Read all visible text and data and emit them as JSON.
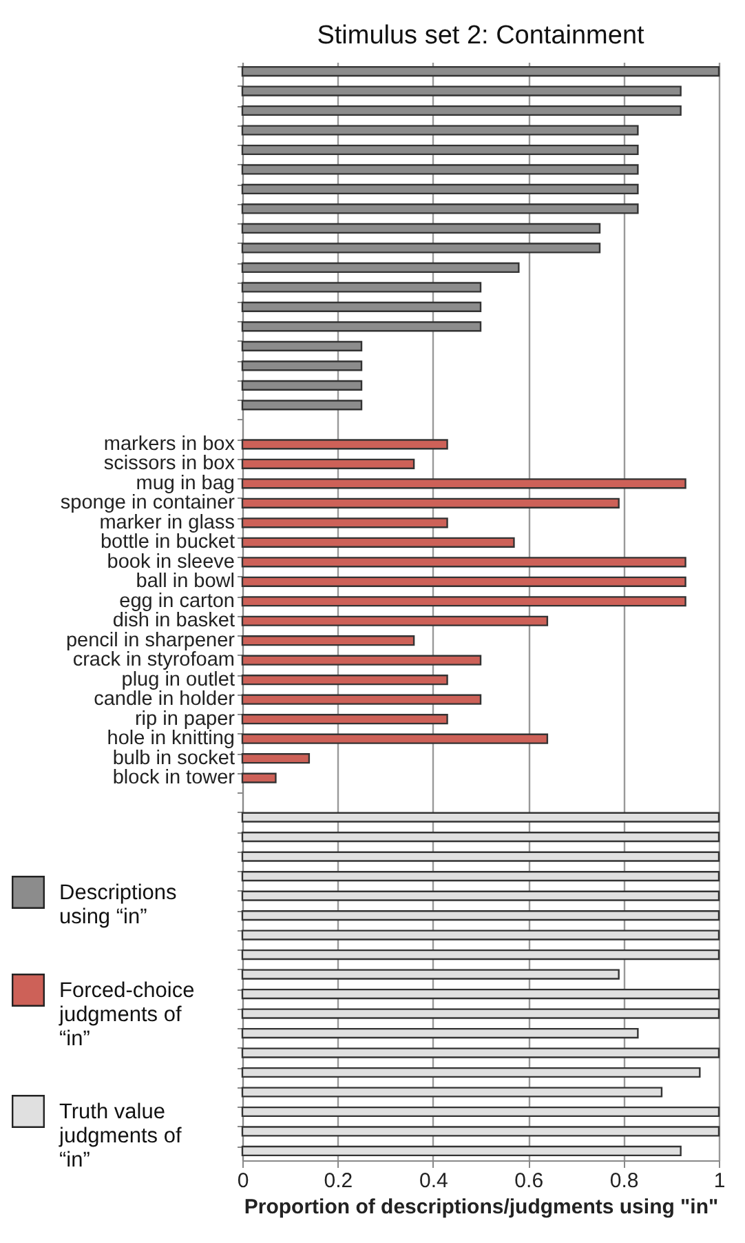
{
  "chart_data": {
    "type": "bar",
    "orientation": "horizontal",
    "title": "Stimulus set 2: Containment",
    "xlabel": "Proportion of descriptions/judgments using \"in\"",
    "categories": [
      null,
      null,
      null,
      null,
      null,
      null,
      null,
      null,
      null,
      null,
      null,
      null,
      null,
      null,
      null,
      null,
      null,
      null,
      null,
      "markers in box",
      "scissors in box",
      "mug in bag",
      "sponge in container",
      "marker in glass",
      "bottle in bucket",
      "book in sleeve",
      "ball in bowl",
      "egg in carton",
      "dish in basket",
      "pencil in sharpener",
      "crack in styrofoam",
      "plug in outlet",
      "candle in holder",
      "rip in paper",
      "hole in knitting",
      "bulb in socket",
      "block in tower",
      null,
      null,
      null,
      null,
      null,
      null,
      null,
      null,
      null,
      null,
      null,
      null,
      null,
      null,
      null,
      null,
      null,
      null,
      null
    ],
    "series": [
      {
        "name": "Descriptions using “in”",
        "color": "#8c8c8c",
        "values": [
          1.0,
          0.92,
          0.92,
          0.83,
          0.83,
          0.83,
          0.83,
          0.83,
          0.75,
          0.75,
          0.58,
          0.5,
          0.5,
          0.5,
          0.25,
          0.25,
          0.25,
          0.25,
          null,
          null,
          null,
          null,
          null,
          null,
          null,
          null,
          null,
          null,
          null,
          null,
          null,
          null,
          null,
          null,
          null,
          null,
          null,
          null,
          null,
          null,
          null,
          null,
          null,
          null,
          null,
          null,
          null,
          null,
          null,
          null,
          null,
          null,
          null,
          null,
          null,
          null
        ]
      },
      {
        "name": "Forced-choice judgments of “in”",
        "color": "#cd6158",
        "values": [
          null,
          null,
          null,
          null,
          null,
          null,
          null,
          null,
          null,
          null,
          null,
          null,
          null,
          null,
          null,
          null,
          null,
          null,
          null,
          0.43,
          0.36,
          0.93,
          0.79,
          0.43,
          0.57,
          0.93,
          0.93,
          0.93,
          0.64,
          0.36,
          0.5,
          0.43,
          0.5,
          0.43,
          0.64,
          0.14,
          0.07,
          null,
          null,
          null,
          null,
          null,
          null,
          null,
          null,
          null,
          null,
          null,
          null,
          null,
          null,
          null,
          null,
          null,
          null,
          null
        ]
      },
      {
        "name": "Truth value judgments of “in”",
        "color": "#e0e0e0",
        "values": [
          null,
          null,
          null,
          null,
          null,
          null,
          null,
          null,
          null,
          null,
          null,
          null,
          null,
          null,
          null,
          null,
          null,
          null,
          null,
          null,
          null,
          null,
          null,
          null,
          null,
          null,
          null,
          null,
          null,
          null,
          null,
          null,
          null,
          null,
          null,
          null,
          null,
          null,
          1,
          1,
          1,
          1,
          1,
          1,
          1,
          1,
          0.79,
          1,
          1,
          0.83,
          1,
          0.96,
          0.88,
          1,
          1,
          0.92
        ]
      }
    ],
    "xlim": [
      0,
      1
    ],
    "xticks": [
      0,
      0.2,
      0.4,
      0.6,
      0.8,
      1
    ],
    "grid": "x",
    "legend": "bottom left"
  }
}
